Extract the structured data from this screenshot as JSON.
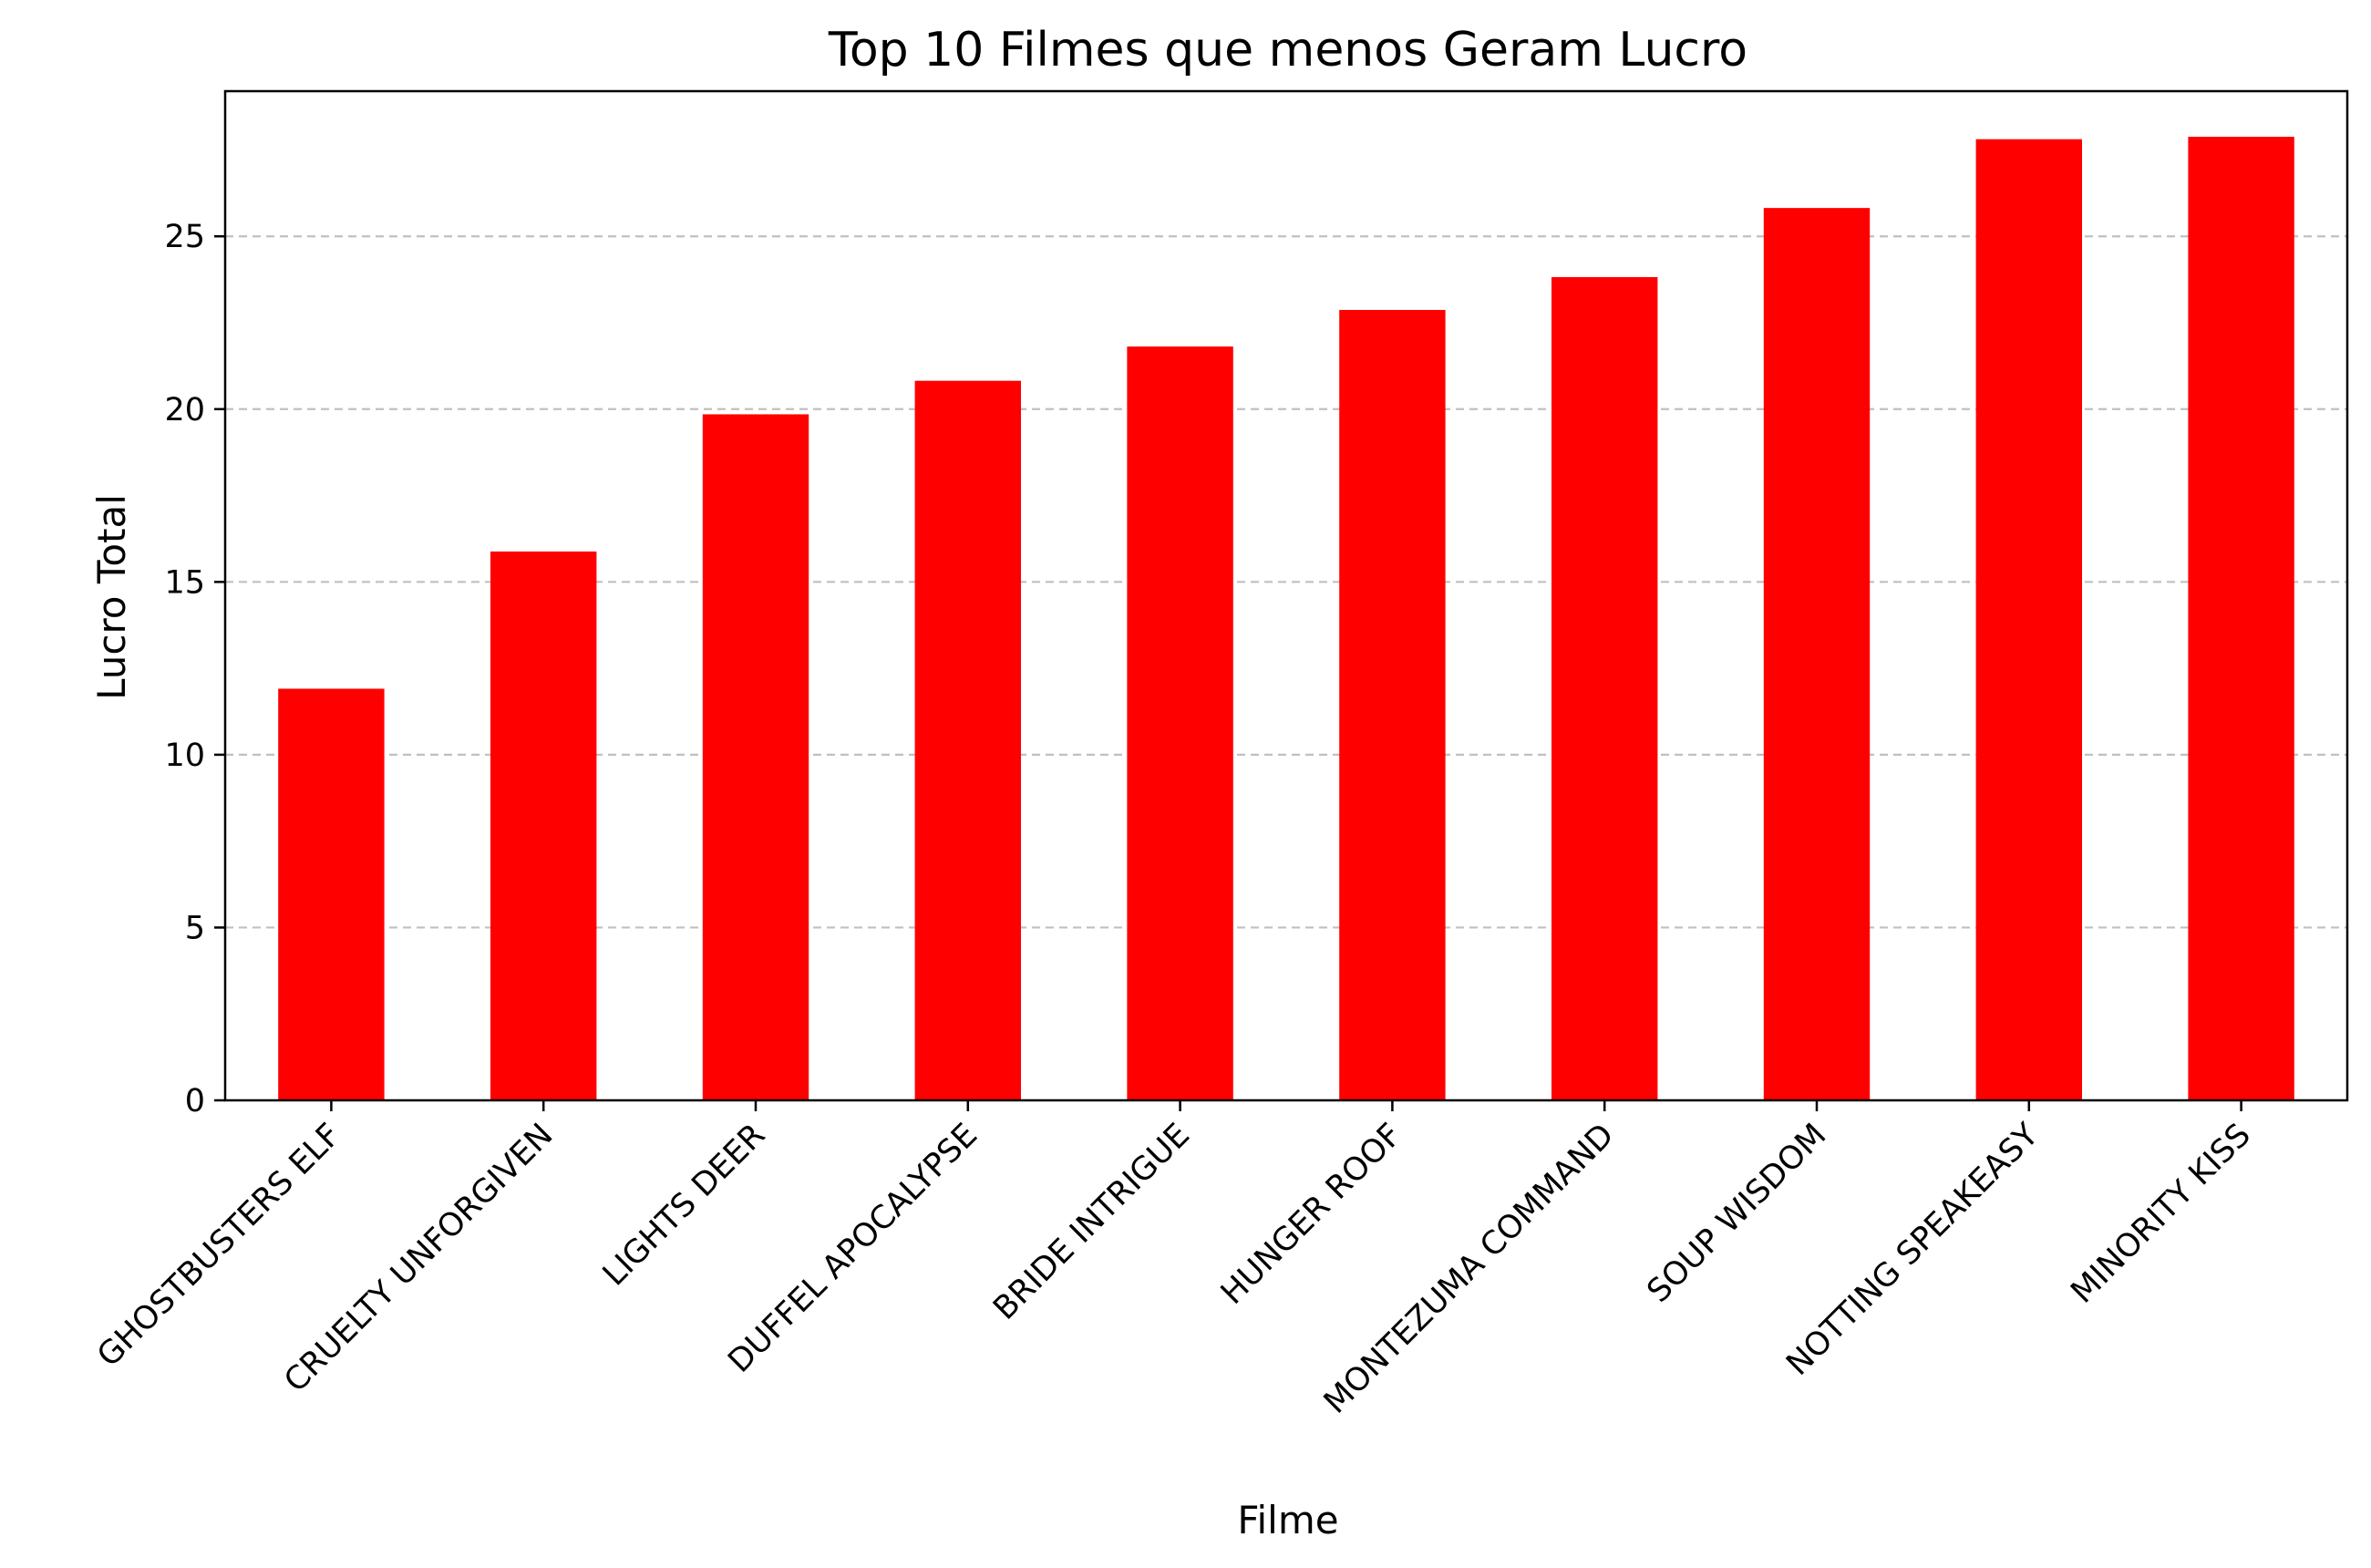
{
  "chart_data": {
    "type": "bar",
    "title": "Top 10 Filmes que menos Geram Lucro",
    "xlabel": "Filme",
    "ylabel": "Lucro Total",
    "categories": [
      "GHOSTBUSTERS ELF",
      "CRUELTY UNFORGIVEN",
      "LIGHTS DEER",
      "DUFFEL APOCALYPSE",
      "BRIDE INTRIGUE",
      "HUNGER ROOF",
      "MONTEZUMA COMMAND",
      "SOUP WISDOM",
      "NOTTING SPEAKEASY",
      "MINORITY KISS"
    ],
    "values": [
      11.91,
      15.88,
      19.85,
      20.82,
      21.81,
      22.87,
      23.82,
      25.82,
      27.81,
      27.88
    ],
    "ylim": [
      0,
      29.2
    ],
    "yticks": [
      0,
      5,
      10,
      15,
      20,
      25
    ],
    "grid": "y-dashed",
    "legend": "none",
    "colors": {
      "bar": "#ff0000",
      "grid": "#c0c0c0",
      "axis": "#000000"
    }
  }
}
